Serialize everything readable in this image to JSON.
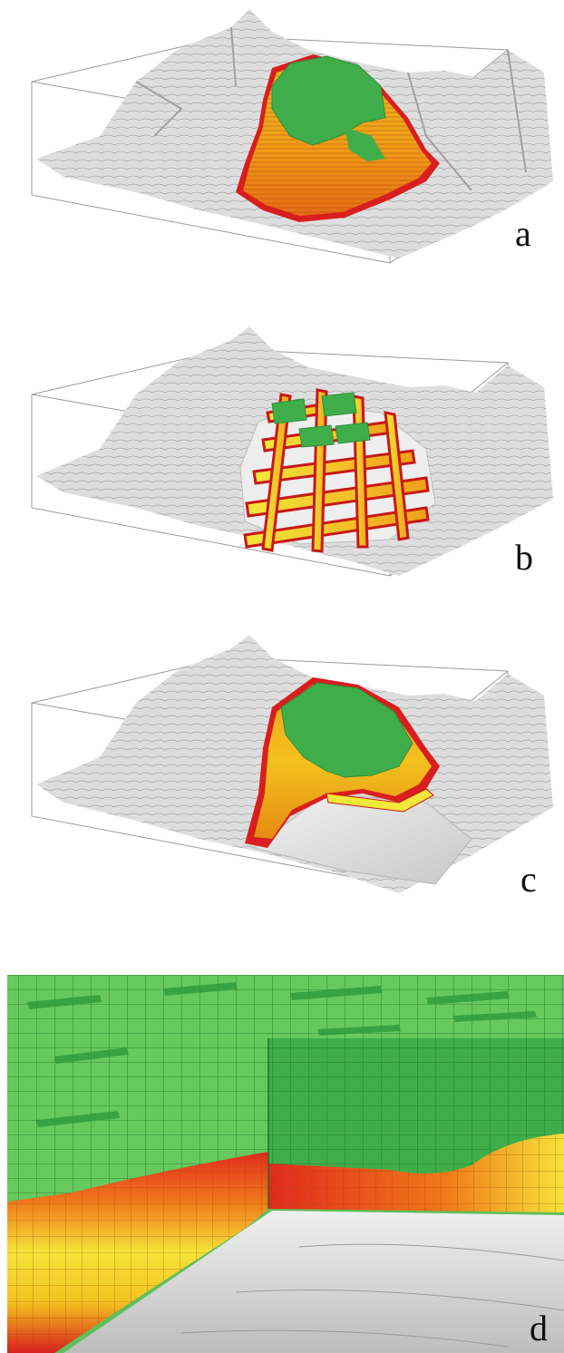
{
  "figure": {
    "panels": [
      {
        "id": "a",
        "label": "a"
      },
      {
        "id": "b",
        "label": "b"
      },
      {
        "id": "c",
        "label": "c"
      },
      {
        "id": "d",
        "label": "d"
      }
    ],
    "colors": {
      "terrain": "#dcdcdc",
      "terrain_shadow": "#9a9a9a",
      "box_line": "#9a9a9a",
      "top_surface": "#3fae4a",
      "top_surface_light": "#6fcf6a",
      "body_mid": "#f0a018",
      "body_core": "#f3e83a",
      "rim": "#d81e1e",
      "floor": "#cfcfcf"
    }
  }
}
